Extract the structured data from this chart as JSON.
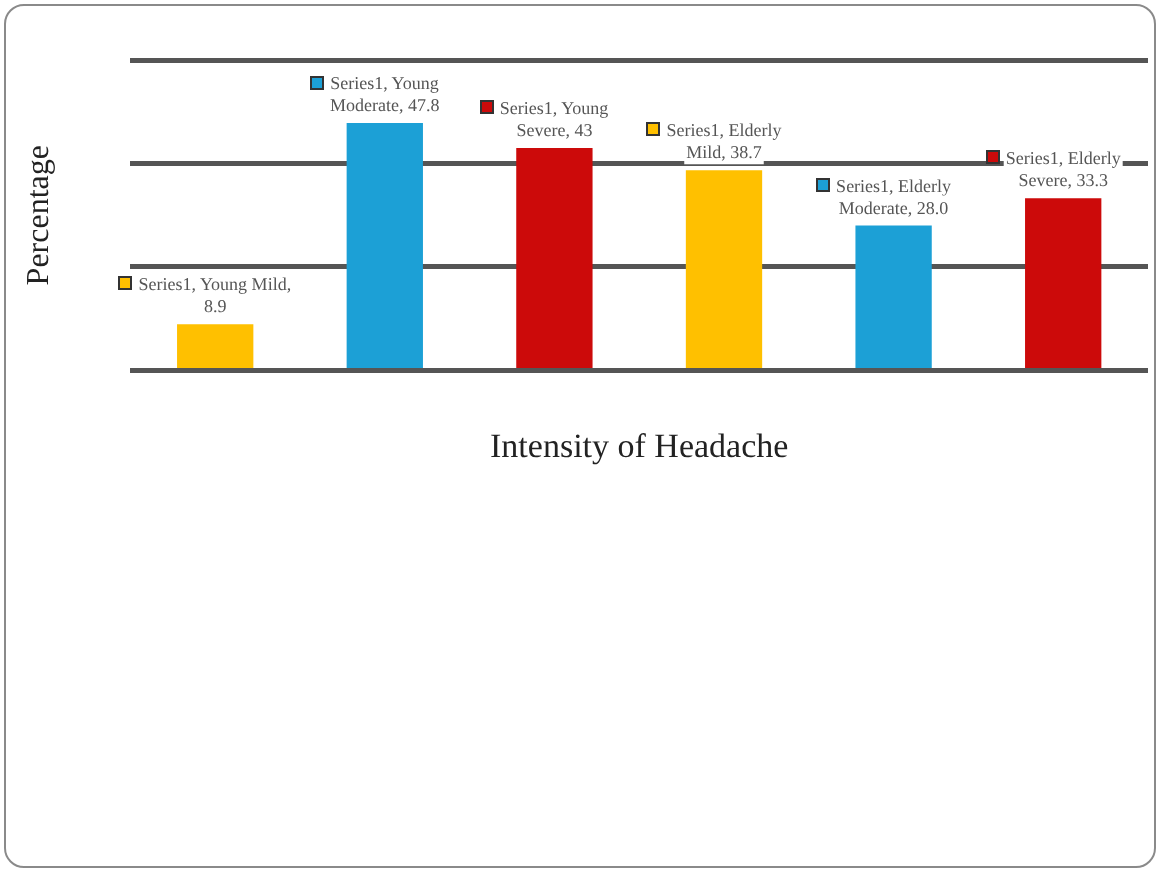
{
  "chart_data": {
    "type": "bar",
    "xlabel": "Intensity of Headache",
    "ylabel": "Percentage",
    "categories": [
      null,
      null,
      null,
      null,
      null,
      null
    ],
    "values": [
      8.9,
      47.8,
      43,
      38.7,
      28.0,
      33.3
    ],
    "colors": [
      "#ffc000",
      "#1ca0d6",
      "#cc0a0a",
      "#ffc000",
      "#1ca0d6",
      "#cc0a0a"
    ],
    "value_labels": [
      "Series1, Young Mild, 8.9",
      "Series1, Young Moderate, 47.8",
      "Series1, Young Severe, 43",
      "Series1, Elderly Mild, 38.7",
      "Series1, Elderly Moderate, 28.0",
      "Series1, Elderly Severe, 33.3"
    ],
    "ylim": [
      0,
      60
    ],
    "yticks": [
      {
        "value": 0,
        "label": null
      },
      {
        "value": 20,
        "label": null
      },
      {
        "value": 40,
        "label": null
      },
      {
        "value": 60,
        "label": null
      }
    ],
    "grid": "y",
    "legend": false
  }
}
